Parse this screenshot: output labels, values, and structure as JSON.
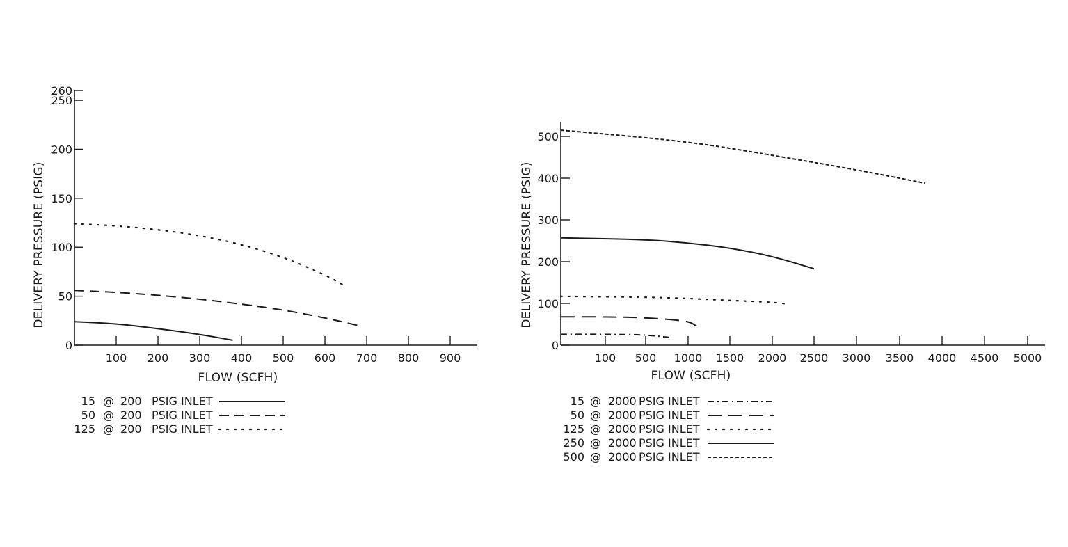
{
  "chart_data": [
    {
      "type": "line",
      "xlabel": "FLOW (SCFH)",
      "ylabel": "DELIVERY PRESSURE (PSIG)",
      "xlim": [
        0,
        960
      ],
      "ylim": [
        0,
        260
      ],
      "x_ticks": [
        100,
        200,
        300,
        400,
        500,
        600,
        700,
        800,
        900
      ],
      "y_ticks": [
        0,
        50,
        100,
        150,
        200,
        250,
        260
      ],
      "grid": false,
      "legend_position": "bottom-left",
      "series": [
        {
          "name": "15 @ 200 PSIG INLET",
          "legend_parts": [
            "15",
            "@",
            "200",
            "PSIG INLET"
          ],
          "style": "solid",
          "x": [
            0,
            100,
            200,
            300,
            380
          ],
          "y": [
            24,
            22,
            17,
            11,
            5
          ]
        },
        {
          "name": "50 @ 200 PSIG INLET",
          "legend_parts": [
            "50",
            "@",
            "200",
            "PSIG INLET"
          ],
          "style": "dashed",
          "x": [
            0,
            100,
            200,
            300,
            400,
            500,
            600,
            690
          ],
          "y": [
            56,
            54,
            51,
            47,
            42,
            36,
            28,
            19
          ]
        },
        {
          "name": "125 @ 200 PSIG INLET",
          "legend_parts": [
            "125",
            "@",
            "200",
            "PSIG INLET"
          ],
          "style": "dotted",
          "x": [
            0,
            100,
            200,
            300,
            400,
            500,
            600,
            650
          ],
          "y": [
            124,
            122,
            118,
            112,
            103,
            90,
            72,
            60
          ]
        }
      ]
    },
    {
      "type": "line",
      "xlabel": "FLOW (SCFH)",
      "ylabel": "DELIVERY PRESSURE (PSIG)",
      "x_ticks": [
        "100",
        "500",
        "1000",
        "1500",
        "2000",
        "2500",
        "3000",
        "3500",
        "4000",
        "4500",
        "5000"
      ],
      "y_ticks": [
        0,
        100,
        200,
        300,
        400,
        500
      ],
      "ylim": [
        0,
        530
      ],
      "grid": false,
      "legend_position": "bottom-left",
      "series": [
        {
          "name": "15 @ 2000 PSIG INLET",
          "legend_parts": [
            "15",
            "@",
            "2000",
            "PSIG INLET"
          ],
          "style": "dash-dot",
          "x": [
            "0",
            "100",
            "500",
            "800"
          ],
          "y": [
            26,
            26,
            25,
            18
          ]
        },
        {
          "name": "50 @ 2000 PSIG INLET",
          "legend_parts": [
            "50",
            "@",
            "2000",
            "PSIG INLET"
          ],
          "style": "long-dash",
          "x": [
            "0",
            "100",
            "500",
            "1000",
            "1100"
          ],
          "y": [
            68,
            68,
            66,
            58,
            46
          ]
        },
        {
          "name": "125 @ 2000 PSIG INLET",
          "legend_parts": [
            "125",
            "@",
            "2000",
            "PSIG INLET"
          ],
          "style": "dotted",
          "x": [
            "0",
            "500",
            "1000",
            "1500",
            "2000",
            "2200"
          ],
          "y": [
            117,
            115,
            112,
            107,
            103,
            98
          ]
        },
        {
          "name": "250 @ 2000 PSIG INLET",
          "legend_parts": [
            "250",
            "@",
            "2000",
            "PSIG INLET"
          ],
          "style": "solid",
          "x": [
            "0",
            "500",
            "1000",
            "1500",
            "2000",
            "2500"
          ],
          "y": [
            257,
            253,
            245,
            233,
            213,
            183
          ]
        },
        {
          "name": "500 @ 2000 PSIG INLET",
          "legend_parts": [
            "500",
            "@",
            "2000",
            "PSIG INLET"
          ],
          "style": "short-dash",
          "x": [
            "0",
            "1000",
            "2000",
            "3000",
            "3500",
            "3800"
          ],
          "y": [
            515,
            488,
            455,
            420,
            400,
            388
          ]
        }
      ]
    }
  ]
}
